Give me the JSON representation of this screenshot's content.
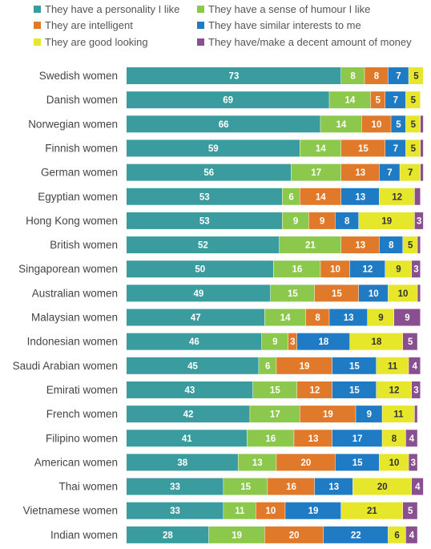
{
  "chart_data": {
    "type": "bar",
    "orientation": "horizontal",
    "stacked": true,
    "title": "",
    "xlabel": "",
    "ylabel": "",
    "xlim": [
      0,
      100
    ],
    "grid": false,
    "legend_position": "top",
    "categories": [
      "Swedish women",
      "Danish women",
      "Norwegian women",
      "Finnish women",
      "German women",
      "Egyptian women",
      "Hong Kong women",
      "British women",
      "Singaporean women",
      "Australian women",
      "Malaysian women",
      "Indonesian women",
      "Saudi Arabian women",
      "Emirati women",
      "French women",
      "Filipino women",
      "American women",
      "Thai women",
      "Vietnamese women",
      "Indian women"
    ],
    "series": [
      {
        "name": "They have a personality I like",
        "color": "#3a9c9e",
        "values": [
          73,
          69,
          66,
          59,
          56,
          53,
          53,
          52,
          50,
          49,
          47,
          46,
          45,
          43,
          42,
          41,
          38,
          33,
          33,
          28
        ]
      },
      {
        "name": "They have a sense of humour I like",
        "color": "#8cc84b",
        "values": [
          8,
          14,
          14,
          14,
          17,
          6,
          9,
          21,
          16,
          15,
          14,
          9,
          6,
          15,
          17,
          16,
          13,
          15,
          11,
          19
        ]
      },
      {
        "name": "They are intelligent",
        "color": "#e07a2a",
        "values": [
          8,
          5,
          10,
          15,
          13,
          14,
          9,
          13,
          10,
          15,
          8,
          3,
          19,
          12,
          19,
          13,
          20,
          16,
          10,
          20
        ]
      },
      {
        "name": "They have similar interests to me",
        "color": "#1f7cc4",
        "values": [
          7,
          7,
          5,
          7,
          7,
          13,
          8,
          8,
          12,
          10,
          13,
          18,
          15,
          15,
          9,
          17,
          15,
          13,
          19,
          22
        ]
      },
      {
        "name": "They are good looking",
        "color": "#e6e62a",
        "values": [
          5,
          5,
          5,
          5,
          7,
          12,
          19,
          5,
          9,
          10,
          9,
          18,
          11,
          12,
          11,
          8,
          10,
          20,
          21,
          6
        ]
      },
      {
        "name": "They have/make a decent amount of money",
        "color": "#8a4f91",
        "values": [
          null,
          null,
          1,
          1,
          1,
          2,
          3,
          1,
          3,
          1,
          9,
          5,
          4,
          3,
          1,
          4,
          3,
          4,
          5,
          4
        ]
      }
    ]
  }
}
